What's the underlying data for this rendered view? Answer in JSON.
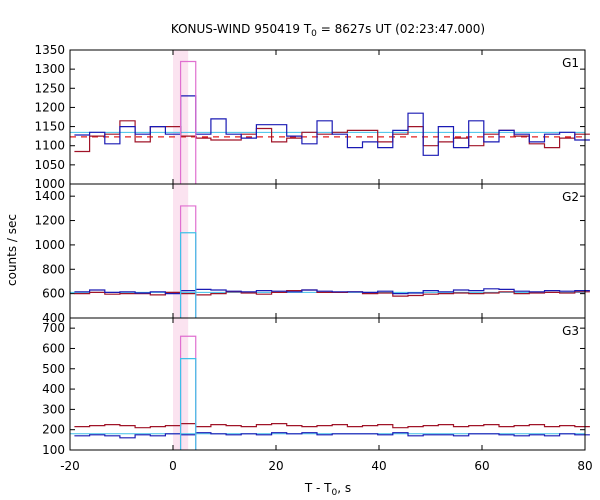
{
  "chart_data": {
    "type": "line",
    "title_prefix": "KONUS-WIND 950419 T",
    "title_sub": "0",
    "title_suffix": " = 8627s UT (02:23:47.000)",
    "xlabel_prefix": "T - T",
    "xlabel_sub": "0",
    "xlabel_suffix": ", s",
    "ylabel": "counts / sec",
    "xlim": [
      -20,
      80
    ],
    "xticks": [
      -20,
      0,
      20,
      40,
      60,
      80
    ],
    "bin_width": 2.944,
    "x_start": -19.136,
    "highlight": [
      0.0,
      2.944
    ],
    "series_names": [
      "blue",
      "red",
      "magenta",
      "cyan"
    ],
    "colors": {
      "blue": "#1a1ab4",
      "red": "#a01428",
      "magenta": "#e070d0",
      "cyan": "#40c0e8",
      "band": "#fbe3f0",
      "dashed": "#e02020"
    },
    "panels": [
      {
        "label": "G1",
        "ylim": [
          1000,
          1350
        ],
        "yticks": [
          1000,
          1050,
          1100,
          1150,
          1200,
          1250,
          1300,
          1350
        ],
        "dashed": 1123,
        "cyan_level": 1135,
        "series": {
          "blue": [
            1128,
            1135,
            1105,
            1150,
            1130,
            1150,
            1130,
            1230,
            1130,
            1170,
            1130,
            1120,
            1155,
            1155,
            1125,
            1105,
            1165,
            1130,
            1095,
            1110,
            1095,
            1140,
            1185,
            1075,
            1150,
            1095,
            1165,
            1110,
            1140,
            1130,
            1110,
            1130,
            1135,
            1115
          ],
          "red": [
            1085,
            1125,
            1130,
            1165,
            1110,
            1150,
            1150,
            1125,
            1120,
            1115,
            1115,
            1130,
            1145,
            1110,
            1120,
            1135,
            1130,
            1135,
            1140,
            1140,
            1110,
            1130,
            1150,
            1100,
            1110,
            1120,
            1100,
            1130,
            1140,
            1125,
            1105,
            1095,
            1120,
            1130
          ],
          "magenta": [
            null,
            null,
            null,
            null,
            null,
            null,
            null,
            1320,
            null,
            null,
            null,
            null,
            null,
            null,
            null,
            null,
            null,
            null,
            null,
            null,
            null,
            null,
            null,
            null,
            null,
            null,
            null,
            null,
            null,
            null,
            null,
            null,
            null,
            null
          ]
        }
      },
      {
        "label": "G2",
        "ylim": [
          400,
          1500
        ],
        "yticks": [
          400,
          600,
          800,
          1000,
          1200,
          1400
        ],
        "cyan_level": 610,
        "series": {
          "blue": [
            615,
            630,
            610,
            615,
            605,
            615,
            600,
            625,
            635,
            630,
            620,
            615,
            625,
            620,
            615,
            630,
            620,
            615,
            615,
            610,
            620,
            600,
            605,
            625,
            615,
            630,
            625,
            640,
            635,
            620,
            615,
            625,
            620,
            625
          ],
          "red": [
            600,
            610,
            595,
            600,
            600,
            590,
            610,
            600,
            590,
            600,
            615,
            605,
            595,
            610,
            625,
            630,
            610,
            610,
            615,
            600,
            605,
            580,
            585,
            595,
            600,
            605,
            600,
            605,
            615,
            600,
            605,
            610,
            605,
            615
          ],
          "magenta": [
            null,
            null,
            null,
            null,
            null,
            null,
            null,
            1320,
            null,
            null,
            null,
            null,
            null,
            null,
            null,
            null,
            null,
            null,
            null,
            null,
            null,
            null,
            null,
            null,
            null,
            null,
            null,
            null,
            null,
            null,
            null,
            null,
            null,
            null
          ],
          "cyan": [
            null,
            null,
            null,
            null,
            null,
            null,
            null,
            1100,
            null,
            null,
            null,
            null,
            null,
            null,
            null,
            null,
            null,
            null,
            null,
            null,
            null,
            null,
            null,
            null,
            null,
            null,
            null,
            null,
            null,
            null,
            null,
            null,
            null,
            null
          ]
        }
      },
      {
        "label": "G3",
        "ylim": [
          100,
          750
        ],
        "yticks": [
          100,
          200,
          300,
          400,
          500,
          600,
          700
        ],
        "cyan_level": 180,
        "series": {
          "blue": [
            170,
            175,
            170,
            160,
            175,
            170,
            180,
            175,
            185,
            180,
            175,
            180,
            175,
            185,
            180,
            185,
            175,
            180,
            180,
            180,
            175,
            185,
            170,
            175,
            175,
            170,
            180,
            180,
            175,
            170,
            175,
            170,
            180,
            175
          ],
          "red": [
            215,
            220,
            225,
            220,
            210,
            215,
            220,
            230,
            215,
            225,
            220,
            215,
            225,
            230,
            220,
            215,
            220,
            225,
            215,
            220,
            225,
            210,
            215,
            220,
            225,
            215,
            220,
            225,
            215,
            220,
            225,
            215,
            220,
            215
          ],
          "magenta": [
            null,
            null,
            null,
            null,
            null,
            null,
            null,
            660,
            null,
            null,
            null,
            null,
            null,
            null,
            null,
            null,
            null,
            null,
            null,
            null,
            null,
            null,
            null,
            null,
            null,
            null,
            null,
            null,
            null,
            null,
            null,
            null,
            null,
            null
          ],
          "cyan": [
            null,
            null,
            null,
            null,
            null,
            null,
            null,
            550,
            null,
            null,
            null,
            null,
            null,
            null,
            null,
            null,
            null,
            null,
            null,
            null,
            null,
            null,
            null,
            null,
            null,
            null,
            null,
            null,
            null,
            null,
            null,
            null,
            null,
            null
          ]
        }
      }
    ]
  }
}
